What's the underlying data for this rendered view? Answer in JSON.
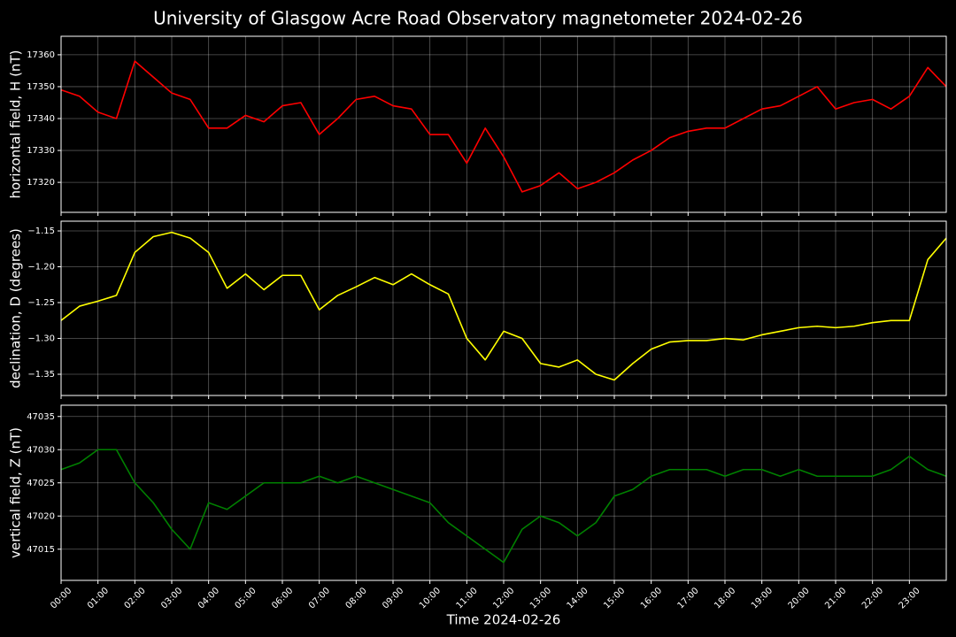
{
  "title": "University of Glasgow Acre Road Observatory magnetometer 2024-02-26",
  "chart_data": [
    {
      "type": "line",
      "ylabel": "horizontal field, H (nT)",
      "x": [
        0,
        0.5,
        1,
        1.5,
        2,
        2.5,
        3,
        3.5,
        4,
        4.5,
        5,
        5.5,
        6,
        6.5,
        7,
        7.5,
        8,
        8.5,
        9,
        9.5,
        10,
        10.5,
        11,
        11.5,
        12,
        12.5,
        13,
        13.5,
        14,
        14.5,
        15,
        15.5,
        16,
        16.5,
        17,
        17.5,
        18,
        18.5,
        19,
        19.5,
        20,
        20.5,
        21,
        21.5,
        22,
        22.5,
        23,
        23.5,
        24
      ],
      "xlim": [
        0,
        24
      ],
      "ylim": [
        17310.6,
        17365.8
      ],
      "yticks": [
        17320,
        17330,
        17340,
        17350,
        17360
      ],
      "grid": true,
      "series": [
        {
          "color": "#ff0000",
          "values": [
            17349,
            17347,
            17342,
            17340,
            17358,
            17353,
            17348,
            17346,
            17337,
            17337,
            17341,
            17339,
            17344,
            17345,
            17335,
            17340,
            17346,
            17347,
            17344,
            17343,
            17335,
            17335,
            17326,
            17337,
            17328,
            17317,
            17319,
            17323,
            17318,
            17320,
            17323,
            17327,
            17330,
            17334,
            17336,
            17337,
            17337,
            17340,
            17343,
            17344,
            17347,
            17350,
            17343,
            17345,
            17346,
            17343,
            17347,
            17356,
            17350
          ]
        }
      ]
    },
    {
      "type": "line",
      "ylabel": "declination, D (degrees)",
      "x": [
        0,
        0.5,
        1,
        1.5,
        2,
        2.5,
        3,
        3.5,
        4,
        4.5,
        5,
        5.5,
        6,
        6.5,
        7,
        7.5,
        8,
        8.5,
        9,
        9.5,
        10,
        10.5,
        11,
        11.5,
        12,
        12.5,
        13,
        13.5,
        14,
        14.5,
        15,
        15.5,
        16,
        16.5,
        17,
        17.5,
        18,
        18.5,
        19,
        19.5,
        20,
        20.5,
        21,
        21.5,
        22,
        22.5,
        23,
        23.5,
        24
      ],
      "xlim": [
        0,
        24
      ],
      "ylim": [
        -1.3796,
        -1.1364
      ],
      "yticks": [
        {
          "value": -1.35,
          "label": "−1.35"
        },
        {
          "value": -1.3,
          "label": "−1.30"
        },
        {
          "value": -1.25,
          "label": "−1.25"
        },
        {
          "value": -1.2,
          "label": "−1.20"
        },
        {
          "value": -1.15,
          "label": "−1.15"
        }
      ],
      "grid": true,
      "series": [
        {
          "color": "#ffff00",
          "values": [
            -1.275,
            -1.255,
            -1.248,
            -1.24,
            -1.18,
            -1.158,
            -1.152,
            -1.16,
            -1.18,
            -1.23,
            -1.21,
            -1.232,
            -1.212,
            -1.212,
            -1.26,
            -1.24,
            -1.228,
            -1.215,
            -1.225,
            -1.21,
            -1.225,
            -1.238,
            -1.3,
            -1.33,
            -1.29,
            -1.3,
            -1.335,
            -1.34,
            -1.33,
            -1.35,
            -1.358,
            -1.335,
            -1.315,
            -1.305,
            -1.303,
            -1.303,
            -1.3,
            -1.302,
            -1.295,
            -1.29,
            -1.285,
            -1.283,
            -1.285,
            -1.283,
            -1.278,
            -1.275,
            -1.275,
            -1.19,
            -1.16
          ]
        }
      ]
    },
    {
      "type": "line",
      "ylabel": "vertical field, Z (nT)",
      "xlabel": "Time 2024-02-26",
      "x": [
        0,
        0.5,
        1,
        1.5,
        2,
        2.5,
        3,
        3.5,
        4,
        4.5,
        5,
        5.5,
        6,
        6.5,
        7,
        7.5,
        8,
        8.5,
        9,
        9.5,
        10,
        10.5,
        11,
        11.5,
        12,
        12.5,
        13,
        13.5,
        14,
        14.5,
        15,
        15.5,
        16,
        16.5,
        17,
        17.5,
        18,
        18.5,
        19,
        19.5,
        20,
        20.5,
        21,
        21.5,
        22,
        22.5,
        23,
        23.5,
        24
      ],
      "xlim": [
        0,
        24
      ],
      "ylim": [
        47010.3,
        47036.7
      ],
      "yticks": [
        47015,
        47020,
        47025,
        47030,
        47035
      ],
      "grid": true,
      "xticks": [
        {
          "value": 0,
          "label": "00:00"
        },
        {
          "value": 1,
          "label": "01:00"
        },
        {
          "value": 2,
          "label": "02:00"
        },
        {
          "value": 3,
          "label": "03:00"
        },
        {
          "value": 4,
          "label": "04:00"
        },
        {
          "value": 5,
          "label": "05:00"
        },
        {
          "value": 6,
          "label": "06:00"
        },
        {
          "value": 7,
          "label": "07:00"
        },
        {
          "value": 8,
          "label": "08:00"
        },
        {
          "value": 9,
          "label": "09:00"
        },
        {
          "value": 10,
          "label": "10:00"
        },
        {
          "value": 11,
          "label": "11:00"
        },
        {
          "value": 12,
          "label": "12:00"
        },
        {
          "value": 13,
          "label": "13:00"
        },
        {
          "value": 14,
          "label": "14:00"
        },
        {
          "value": 15,
          "label": "15:00"
        },
        {
          "value": 16,
          "label": "16:00"
        },
        {
          "value": 17,
          "label": "17:00"
        },
        {
          "value": 18,
          "label": "18:00"
        },
        {
          "value": 19,
          "label": "19:00"
        },
        {
          "value": 20,
          "label": "20:00"
        },
        {
          "value": 21,
          "label": "21:00"
        },
        {
          "value": 22,
          "label": "22:00"
        },
        {
          "value": 23,
          "label": "23:00"
        }
      ],
      "series": [
        {
          "color": "#008000",
          "values": [
            47027,
            47028,
            47030,
            47030,
            47025,
            47022,
            47018,
            47015,
            47022,
            47021,
            47023,
            47025,
            47025,
            47025,
            47026,
            47025,
            47026,
            47025,
            47024,
            47023,
            47022,
            47019,
            47017,
            47015,
            47013,
            47018,
            47020,
            47019,
            47017,
            47019,
            47023,
            47024,
            47026,
            47027,
            47027,
            47027,
            47026,
            47027,
            47027,
            47026,
            47027,
            47026,
            47026,
            47026,
            47026,
            47027,
            47029,
            47027,
            47026
          ]
        }
      ]
    }
  ]
}
